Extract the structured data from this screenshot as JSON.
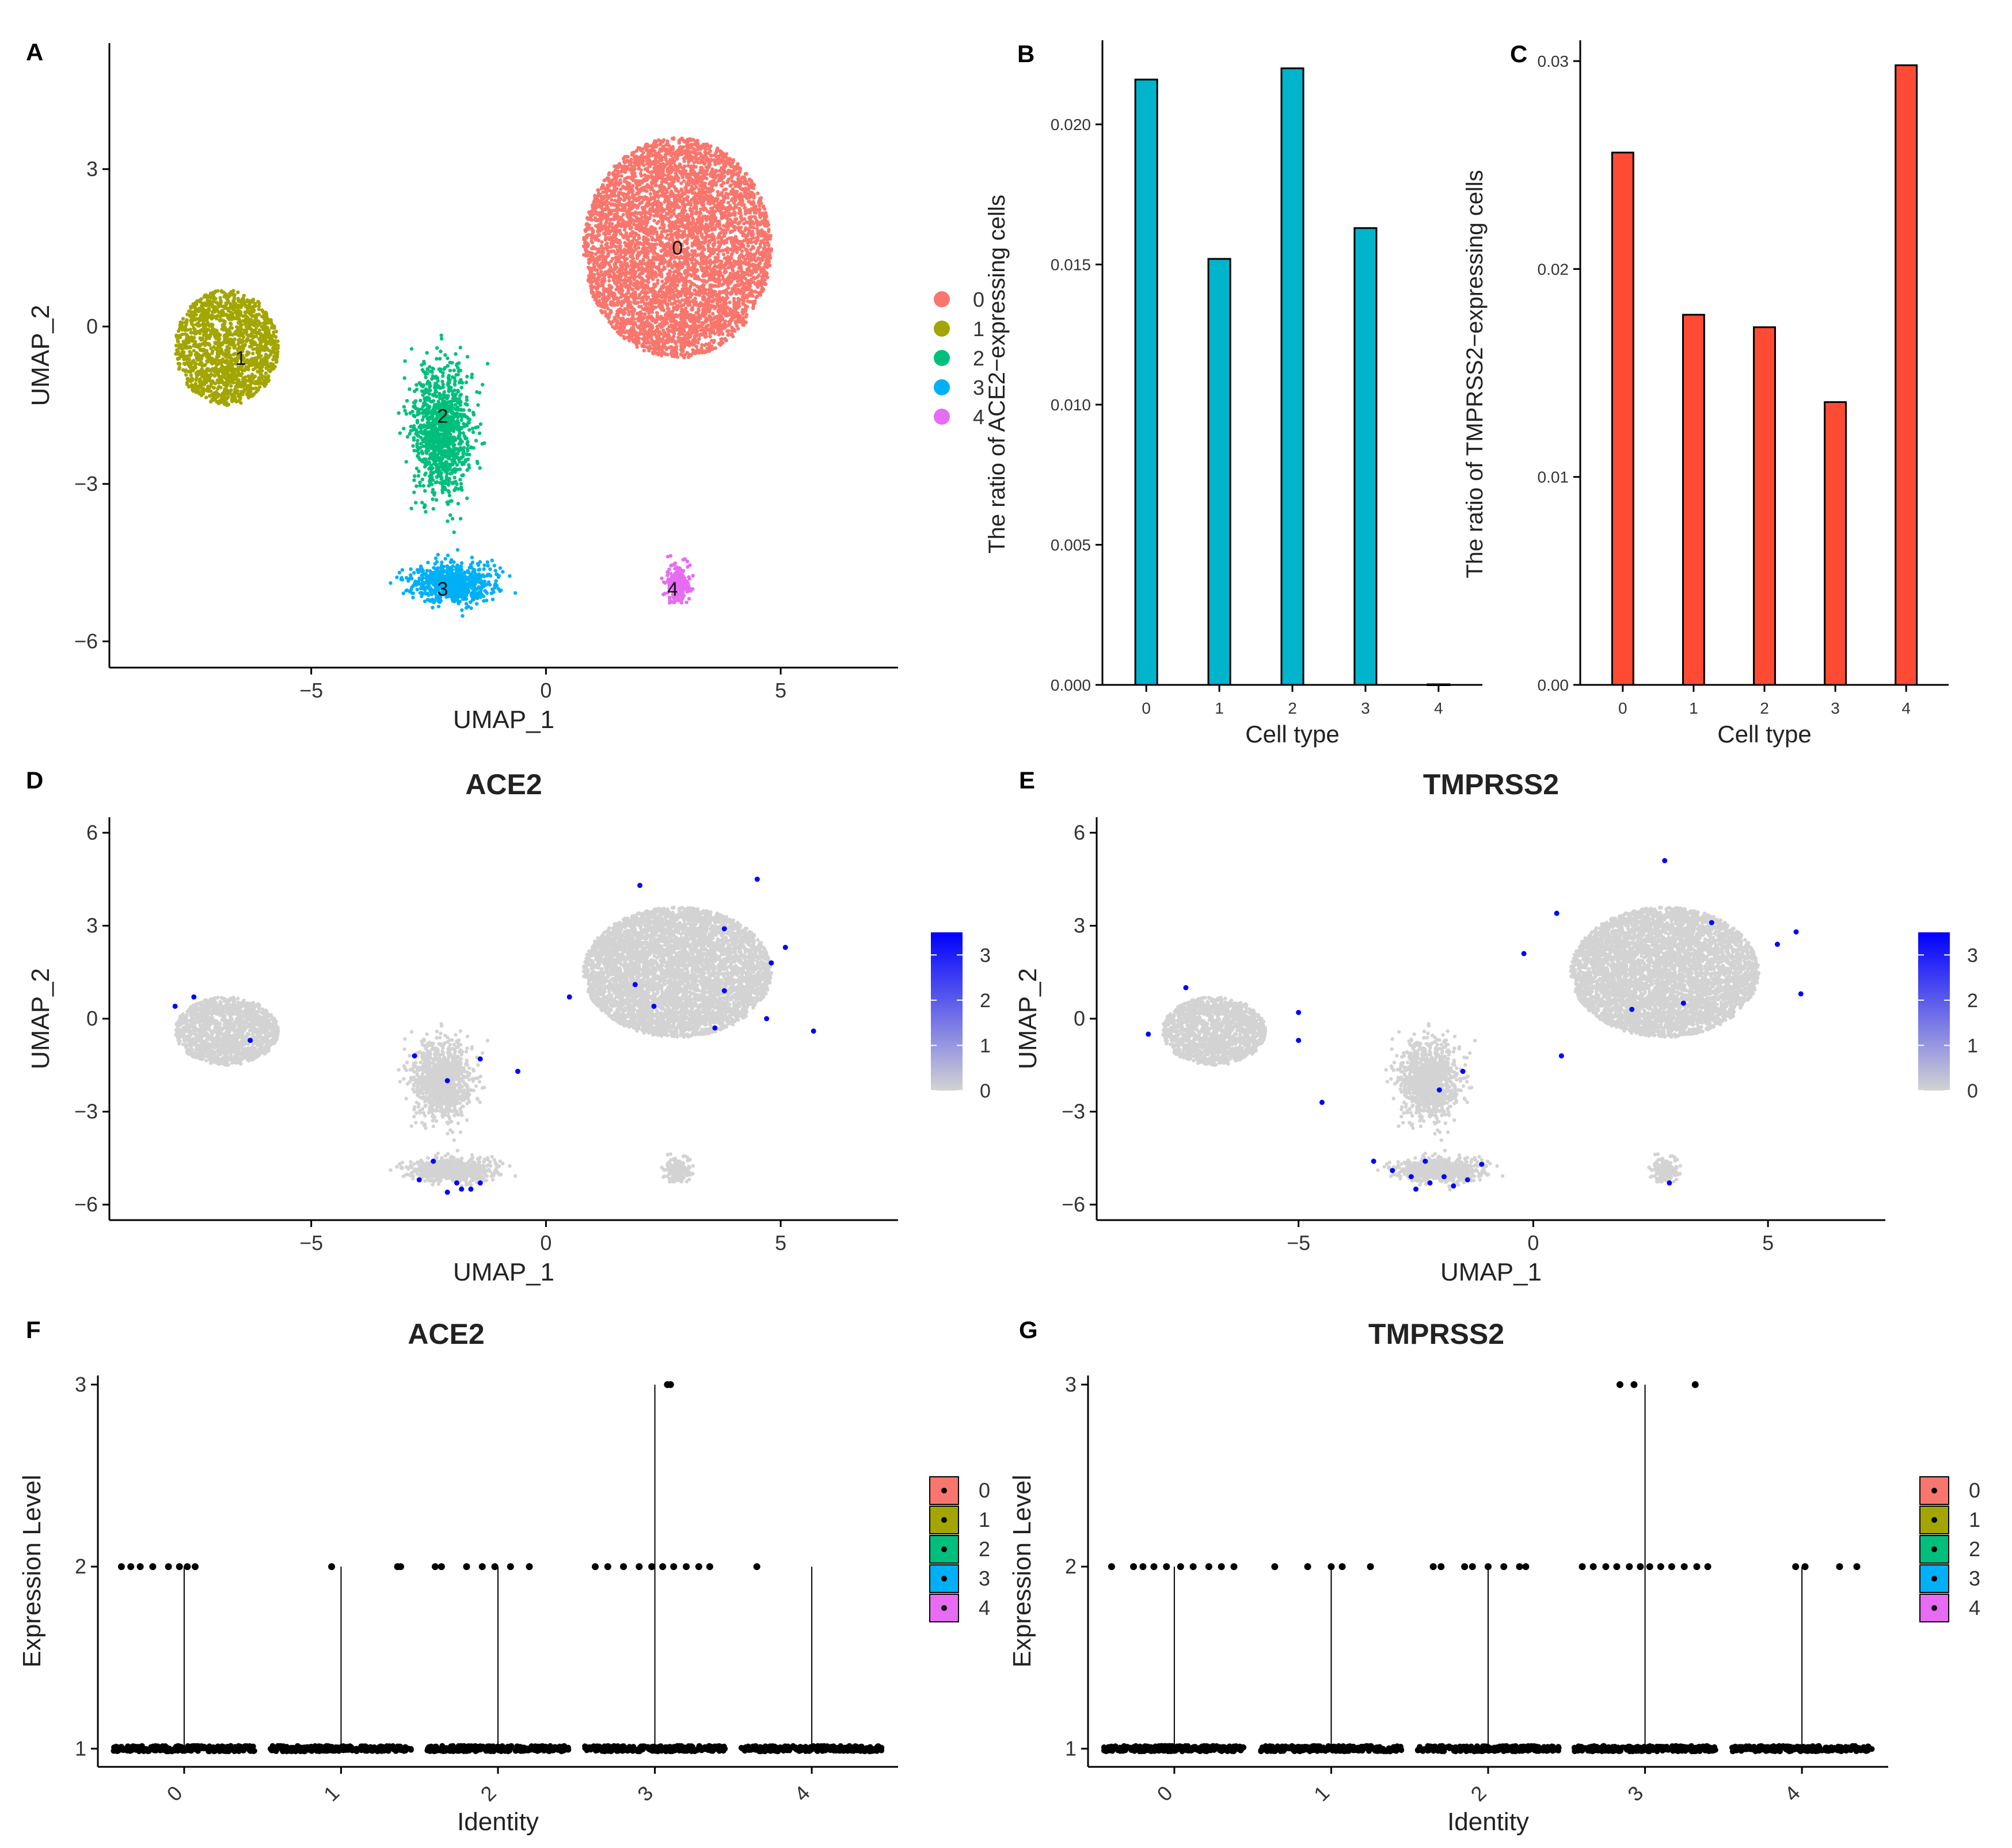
{
  "figure": {
    "type": "multi-panel scientific figure"
  },
  "colors": {
    "cluster": [
      "#F8766D",
      "#A3A500",
      "#00BF7D",
      "#00B0F6",
      "#E76BF3"
    ],
    "ace2_bar": "#00B4CC",
    "tmprss2_bar": "#FF4B33",
    "feature_low": "#D3D3D3",
    "feature_high": "#0000FF"
  },
  "chart_data": [
    {
      "panel": "A",
      "type": "scatter",
      "title": "",
      "xlabel": "UMAP_1",
      "ylabel": "UMAP_2",
      "xlim": [
        -9.3,
        7.5
      ],
      "ylim": [
        -6.5,
        5.4
      ],
      "xticks": [
        -5,
        0,
        5
      ],
      "yticks": [
        -6,
        -3,
        0,
        3
      ],
      "legend": {
        "placement": "right",
        "entries": [
          "0",
          "1",
          "2",
          "3",
          "4"
        ]
      },
      "cluster_labels": [
        {
          "label": "0",
          "x": 2.8,
          "y": 1.5
        },
        {
          "label": "1",
          "x": -6.5,
          "y": -0.6
        },
        {
          "label": "2",
          "x": -2.2,
          "y": -1.7
        },
        {
          "label": "3",
          "x": -2.2,
          "y": -5.0
        },
        {
          "label": "4",
          "x": 2.7,
          "y": -5.0
        }
      ],
      "clusters": [
        {
          "id": "0",
          "center": [
            2.8,
            1.5
          ],
          "spread": [
            2.0,
            2.1
          ],
          "approx_cells": 5200
        },
        {
          "id": "1",
          "center": [
            -6.8,
            -0.4
          ],
          "spread": [
            1.1,
            1.1
          ],
          "approx_cells": 1500
        },
        {
          "id": "2",
          "center": [
            -2.2,
            -2.0
          ],
          "spread": [
            0.6,
            1.2
          ],
          "approx_cells": 1100
        },
        {
          "id": "3",
          "center": [
            -2.0,
            -4.9
          ],
          "spread": [
            0.9,
            0.35
          ],
          "approx_cells": 750
        },
        {
          "id": "4",
          "center": [
            2.8,
            -4.9
          ],
          "spread": [
            0.25,
            0.35
          ],
          "approx_cells": 200
        }
      ]
    },
    {
      "panel": "B",
      "type": "bar",
      "title": "",
      "xlabel": "Cell type",
      "ylabel": "The ratio of ACE2−expressing cells",
      "categories": [
        "0",
        "1",
        "2",
        "3",
        "4"
      ],
      "values": [
        0.0216,
        0.0152,
        0.022,
        0.0163,
        0.0
      ],
      "ylim": [
        0,
        0.023
      ],
      "yticks": [
        "0.000",
        "0.005",
        "0.010",
        "0.015",
        "0.020"
      ],
      "bar_color": "#00B4CC"
    },
    {
      "panel": "C",
      "type": "bar",
      "title": "",
      "xlabel": "Cell type",
      "ylabel": "The ratio of TMPRSS2−expressing cells",
      "categories": [
        "0",
        "1",
        "2",
        "3",
        "4"
      ],
      "values": [
        0.0256,
        0.0178,
        0.0172,
        0.0136,
        0.0298
      ],
      "ylim": [
        0,
        0.031
      ],
      "yticks": [
        "0.00",
        "0.01",
        "0.02",
        "0.03"
      ],
      "bar_color": "#FF4B33"
    },
    {
      "panel": "D",
      "type": "scatter",
      "title": "ACE2",
      "xlabel": "UMAP_1",
      "ylabel": "UMAP_2",
      "xlim": [
        -9.3,
        7.5
      ],
      "ylim": [
        -6.5,
        6.5
      ],
      "xticks": [
        -5,
        0,
        5
      ],
      "yticks": [
        -6,
        -3,
        0,
        3,
        6
      ],
      "colorbar": {
        "placement": "right",
        "ticks": [
          0,
          1,
          2,
          3
        ],
        "max": 3.5
      },
      "expressing_cells": [
        [
          2.0,
          4.3
        ],
        [
          4.5,
          4.5
        ],
        [
          3.8,
          2.9
        ],
        [
          5.1,
          2.3
        ],
        [
          4.8,
          1.8
        ],
        [
          1.9,
          1.1
        ],
        [
          3.8,
          0.9
        ],
        [
          0.5,
          0.7
        ],
        [
          2.3,
          0.4
        ],
        [
          4.7,
          0.0
        ],
        [
          -7.5,
          0.7
        ],
        [
          -7.9,
          0.4
        ],
        [
          -6.3,
          -0.7
        ],
        [
          -1.4,
          -1.3
        ],
        [
          -0.6,
          -1.7
        ],
        [
          -2.8,
          -1.2
        ],
        [
          -2.1,
          -2.0
        ],
        [
          -2.4,
          -4.6
        ],
        [
          -2.7,
          -5.2
        ],
        [
          -1.8,
          -5.5
        ],
        [
          -1.6,
          -5.5
        ],
        [
          -1.4,
          -5.3
        ],
        [
          -2.1,
          -5.6
        ],
        [
          -1.9,
          -5.3
        ],
        [
          5.7,
          -0.4
        ],
        [
          3.6,
          -0.3
        ]
      ]
    },
    {
      "panel": "E",
      "type": "scatter",
      "title": "TMPRSS2",
      "xlabel": "UMAP_1",
      "ylabel": "UMAP_2",
      "xlim": [
        -9.3,
        7.5
      ],
      "ylim": [
        -6.5,
        6.5
      ],
      "xticks": [
        -5,
        0,
        5
      ],
      "yticks": [
        -6,
        -3,
        0,
        3,
        6
      ],
      "colorbar": {
        "placement": "right",
        "ticks": [
          0,
          1,
          2,
          3
        ],
        "max": 3.5
      },
      "expressing_cells": [
        [
          2.8,
          5.1
        ],
        [
          0.5,
          3.4
        ],
        [
          5.6,
          2.8
        ],
        [
          3.8,
          3.1
        ],
        [
          5.2,
          2.4
        ],
        [
          -0.2,
          2.1
        ],
        [
          5.7,
          0.8
        ],
        [
          3.2,
          0.5
        ],
        [
          2.1,
          0.3
        ],
        [
          -7.4,
          1.0
        ],
        [
          -8.2,
          -0.5
        ],
        [
          -5.0,
          -0.7
        ],
        [
          -5.0,
          0.2
        ],
        [
          -4.5,
          -2.7
        ],
        [
          -1.5,
          -1.7
        ],
        [
          -2.0,
          -2.3
        ],
        [
          -3.4,
          -4.6
        ],
        [
          -3.0,
          -4.9
        ],
        [
          -2.6,
          -5.1
        ],
        [
          -2.2,
          -5.3
        ],
        [
          -1.9,
          -5.1
        ],
        [
          -1.7,
          -5.4
        ],
        [
          -1.4,
          -5.2
        ],
        [
          -2.3,
          -4.6
        ],
        [
          -1.1,
          -4.7
        ],
        [
          -2.5,
          -5.5
        ],
        [
          2.9,
          -5.3
        ],
        [
          0.6,
          -1.2
        ]
      ]
    },
    {
      "panel": "F",
      "type": "scatter",
      "title": "ACE2",
      "xlabel": "Identity",
      "ylabel": "Expression Level",
      "categories": [
        "0",
        "1",
        "2",
        "3",
        "4"
      ],
      "ylim": [
        0.9,
        3.05
      ],
      "yticks": [
        1,
        2,
        3
      ],
      "legend": {
        "placement": "right",
        "entries": [
          "0",
          "1",
          "2",
          "3",
          "4"
        ]
      },
      "violin_line_tops": [
        2,
        2,
        2,
        3,
        2
      ],
      "points": [
        {
          "identity": "0",
          "level": 2,
          "offsets": [
            -0.4,
            -0.34,
            -0.28,
            -0.2,
            -0.1,
            -0.03,
            0.02,
            0.07
          ]
        },
        {
          "identity": "1",
          "level": 2,
          "offsets": [
            -0.06,
            0.36,
            0.38
          ]
        },
        {
          "identity": "2",
          "level": 2,
          "offsets": [
            -0.4,
            -0.36,
            -0.2,
            -0.1,
            -0.02,
            0.08,
            0.2
          ]
        },
        {
          "identity": "3",
          "level": 2,
          "offsets": [
            -0.38,
            -0.3,
            -0.2,
            -0.1,
            -0.02,
            0.05,
            0.12,
            0.2,
            0.28,
            0.35
          ]
        },
        {
          "identity": "3",
          "level": 3,
          "offsets": [
            0.08,
            0.1
          ]
        },
        {
          "identity": "4",
          "level": 2,
          "offsets": [
            -0.35
          ]
        }
      ]
    },
    {
      "panel": "G",
      "type": "scatter",
      "title": "TMPRSS2",
      "xlabel": "Identity",
      "ylabel": "Expression Level",
      "categories": [
        "0",
        "1",
        "2",
        "3",
        "4"
      ],
      "ylim": [
        0.9,
        3.05
      ],
      "yticks": [
        1,
        2,
        3
      ],
      "legend": {
        "placement": "right",
        "entries": [
          "0",
          "1",
          "2",
          "3",
          "4"
        ]
      },
      "violin_line_tops": [
        2,
        2,
        2,
        3,
        2
      ],
      "points": [
        {
          "identity": "0",
          "level": 2,
          "offsets": [
            -0.4,
            -0.26,
            -0.2,
            -0.13,
            -0.05,
            0.04,
            0.12,
            0.22,
            0.3,
            0.38
          ]
        },
        {
          "identity": "1",
          "level": 2,
          "offsets": [
            -0.36,
            -0.15,
            0.0,
            0.07,
            0.25
          ]
        },
        {
          "identity": "2",
          "level": 2,
          "offsets": [
            -0.35,
            -0.3,
            -0.15,
            -0.1,
            0.0,
            0.1,
            0.2,
            0.24
          ]
        },
        {
          "identity": "3",
          "level": 2,
          "offsets": [
            -0.4,
            -0.33,
            -0.25,
            -0.18,
            -0.1,
            -0.03,
            0.03,
            0.1,
            0.17,
            0.25,
            0.33,
            0.4
          ]
        },
        {
          "identity": "3",
          "level": 3,
          "offsets": [
            -0.16,
            -0.07,
            0.32
          ]
        },
        {
          "identity": "4",
          "level": 2,
          "offsets": [
            -0.04,
            0.02,
            0.24,
            0.35
          ]
        }
      ]
    }
  ]
}
